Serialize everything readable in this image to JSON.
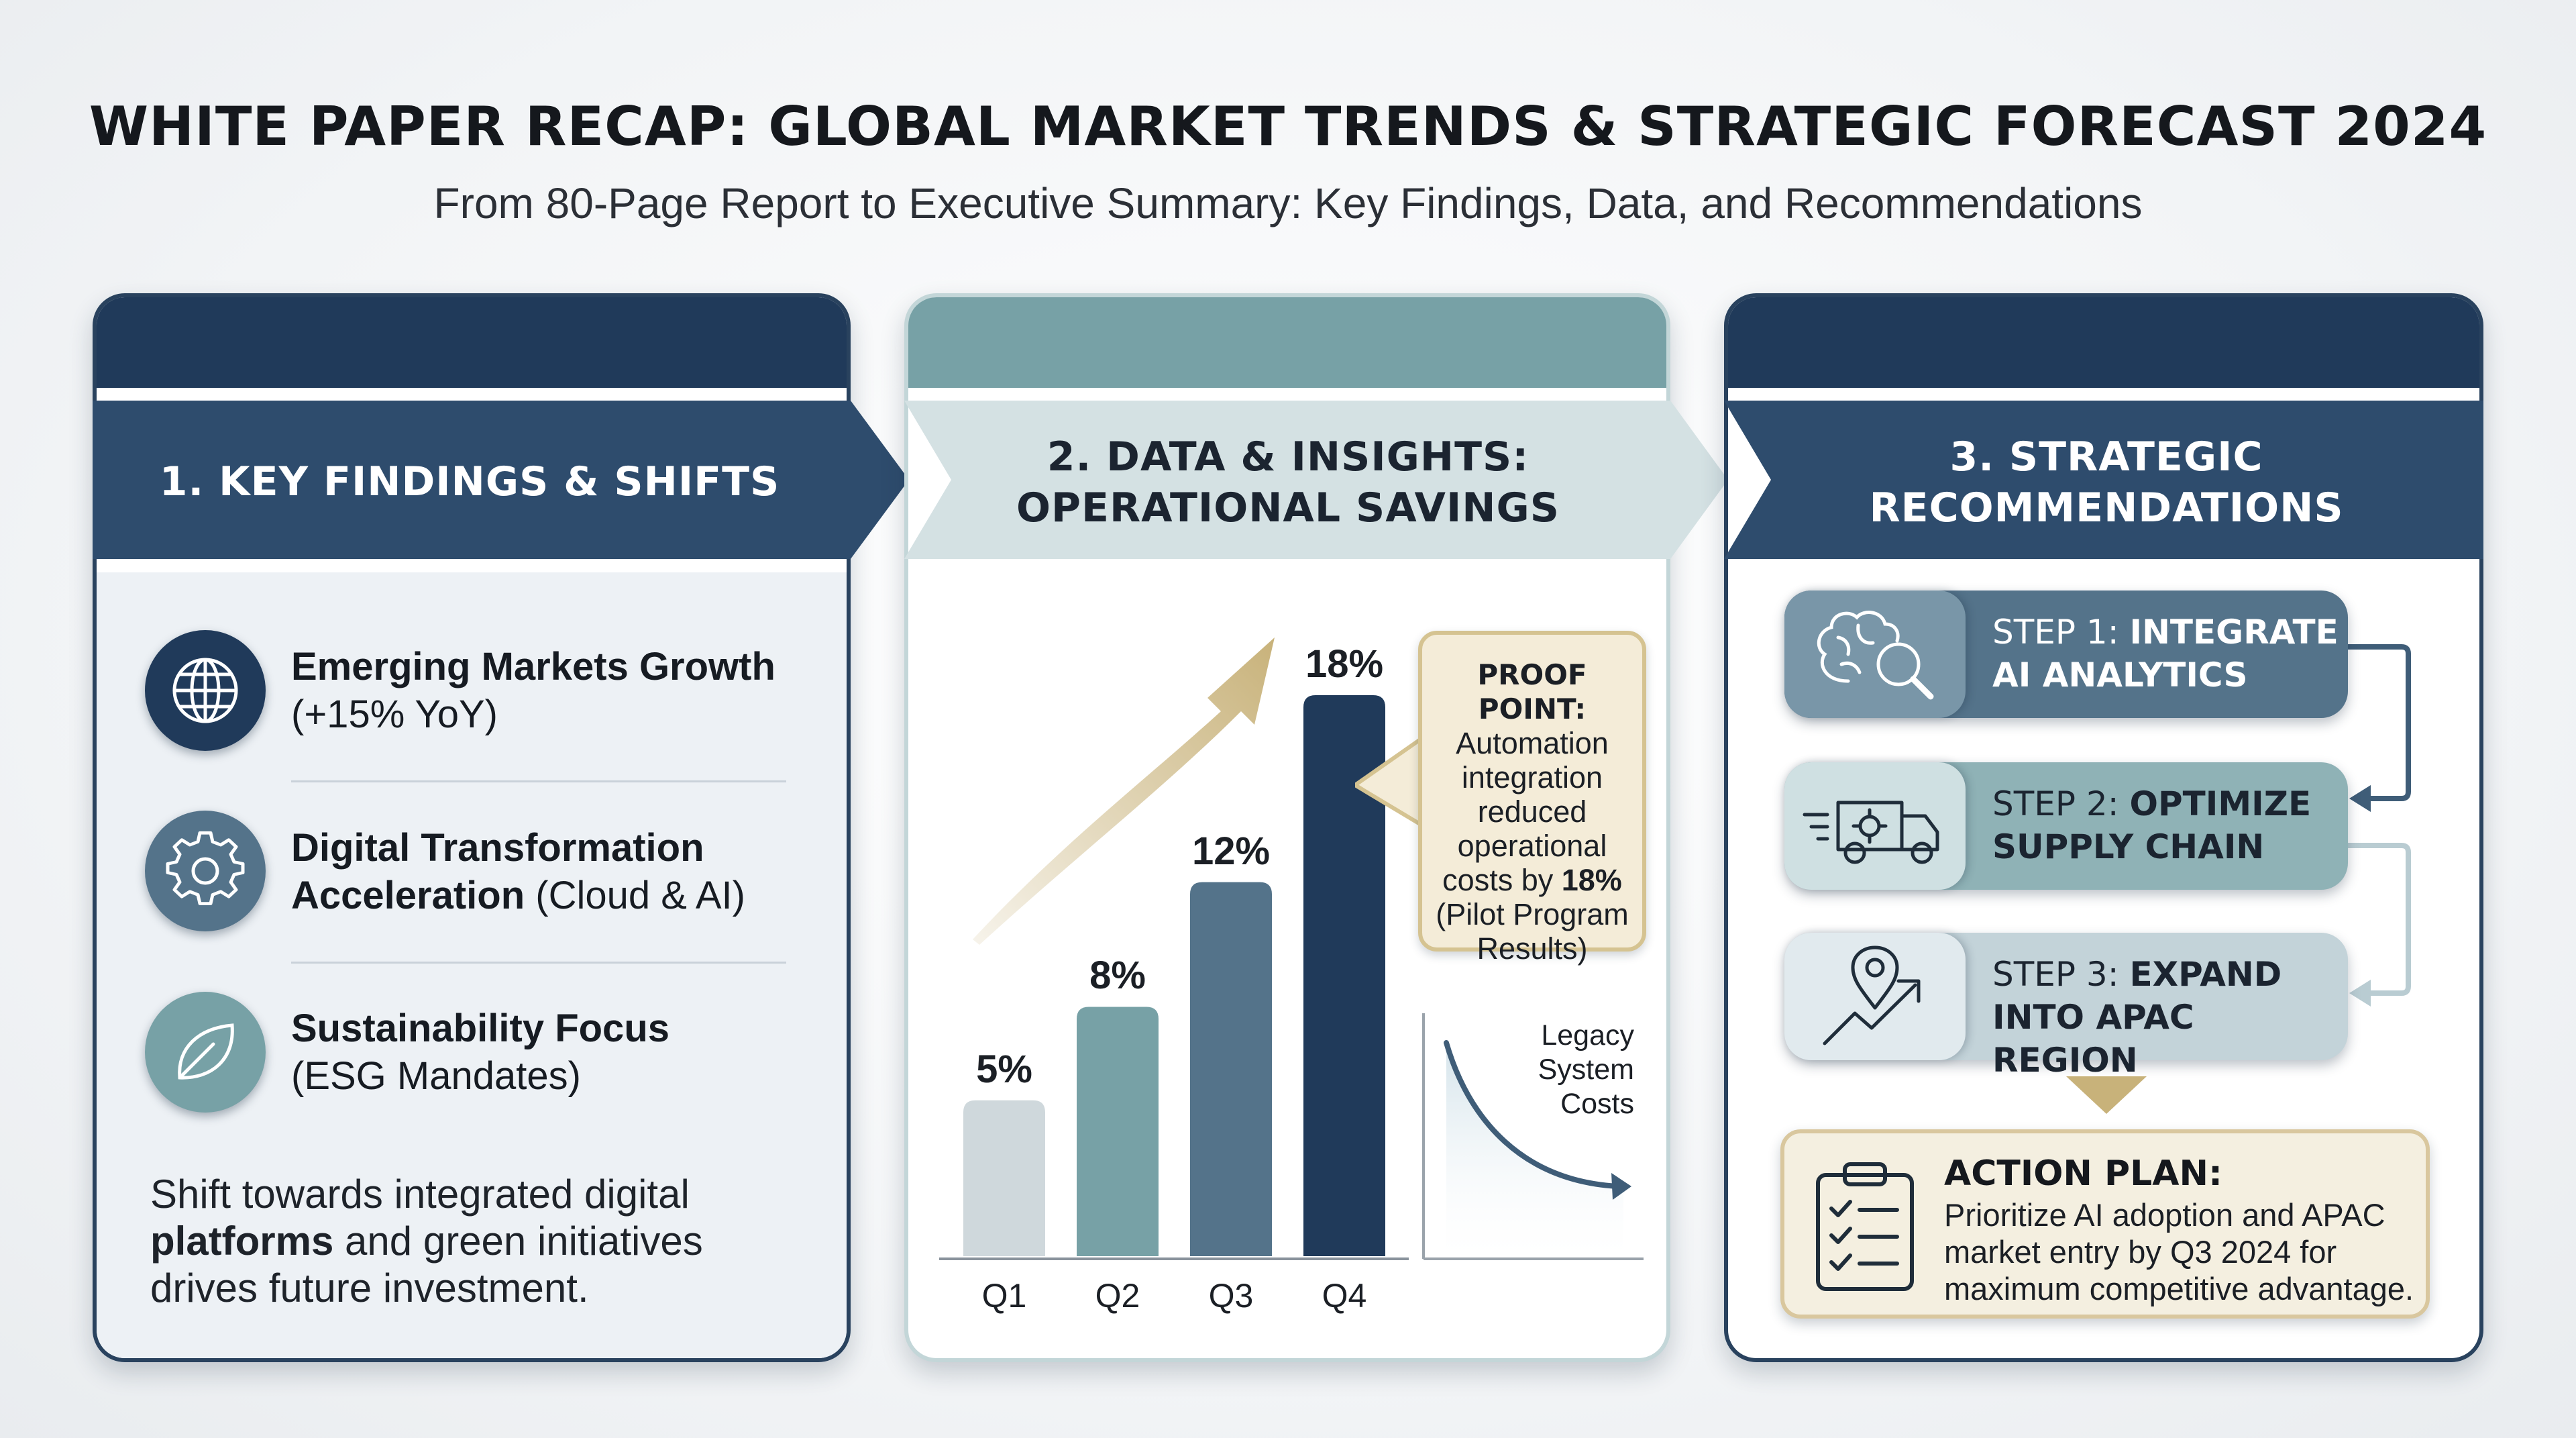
{
  "title": "WHITE PAPER RECAP: GLOBAL MARKET TRENDS & STRATEGIC FORECAST 2024",
  "subtitle": "From 80-Page Report to Executive Summary: Key Findings, Data, and Recommendations",
  "colors": {
    "navy": "#203a5a",
    "slate": "#54738a",
    "teal": "#77a1a6",
    "light_gray": "#cfd8dc",
    "gold": "#c8b27a",
    "cream": "#f4ecd8"
  },
  "panel1": {
    "header": [
      "1. KEY FINDINGS & SHIFTS"
    ],
    "findings": [
      {
        "icon": "globe-icon",
        "bold": "Emerging Markets Growth",
        "normal": "(+15% YoY)"
      },
      {
        "icon": "gear-icon",
        "bold_line1": "Digital Transformation",
        "bold_line2": "Acceleration",
        "normal": " (Cloud & AI)"
      },
      {
        "icon": "leaf-icon",
        "bold": "Sustainability Focus",
        "normal": "(ESG Mandates)"
      }
    ],
    "summary": {
      "line1": "Shift towards integrated digital",
      "line2_bold": "platforms",
      "line2_rest": " and green initiatives",
      "line3": "drives future investment."
    }
  },
  "panel2": {
    "header": [
      "2. DATA & INSIGHTS:",
      "OPERATIONAL SAVINGS"
    ],
    "proof_point": {
      "title": "PROOF POINT:",
      "lines": [
        "Automation",
        "integration",
        "reduced",
        "operational"
      ],
      "line_costs": "costs by ",
      "line_costs_bold": "18%",
      "lines_after": [
        "(Pilot Program",
        "Results)"
      ]
    },
    "legacy_label": [
      "Legacy",
      "System",
      "Costs"
    ]
  },
  "chart_data": {
    "type": "bar",
    "categories": [
      "Q1",
      "Q2",
      "Q3",
      "Q4"
    ],
    "values": [
      5,
      8,
      12,
      18
    ],
    "value_labels": [
      "5%",
      "8%",
      "12%",
      "18%"
    ],
    "bar_colors": [
      "#cfd8dc",
      "#77a1a6",
      "#54738a",
      "#203a5a"
    ],
    "ylim": [
      0,
      18
    ],
    "grid": false
  },
  "panel3": {
    "header": [
      "3. STRATEGIC",
      "RECOMMENDATIONS"
    ],
    "steps": [
      {
        "icon": "brain-search-icon",
        "prefix": "STEP 1: ",
        "bold1": "INTEGRATE",
        "bold2": "AI ANALYTICS"
      },
      {
        "icon": "delivery-truck-icon",
        "prefix": "STEP 2: ",
        "bold1": "OPTIMIZE",
        "bold2": "SUPPLY CHAIN"
      },
      {
        "icon": "location-growth-icon",
        "prefix": "STEP 3: ",
        "bold1": "EXPAND",
        "bold2": "INTO APAC REGION"
      }
    ],
    "action_plan": {
      "title": "ACTION PLAN:",
      "lines": [
        "Prioritize AI adoption and APAC",
        "market entry by Q3 2024 for",
        "maximum competitive advantage."
      ]
    }
  }
}
